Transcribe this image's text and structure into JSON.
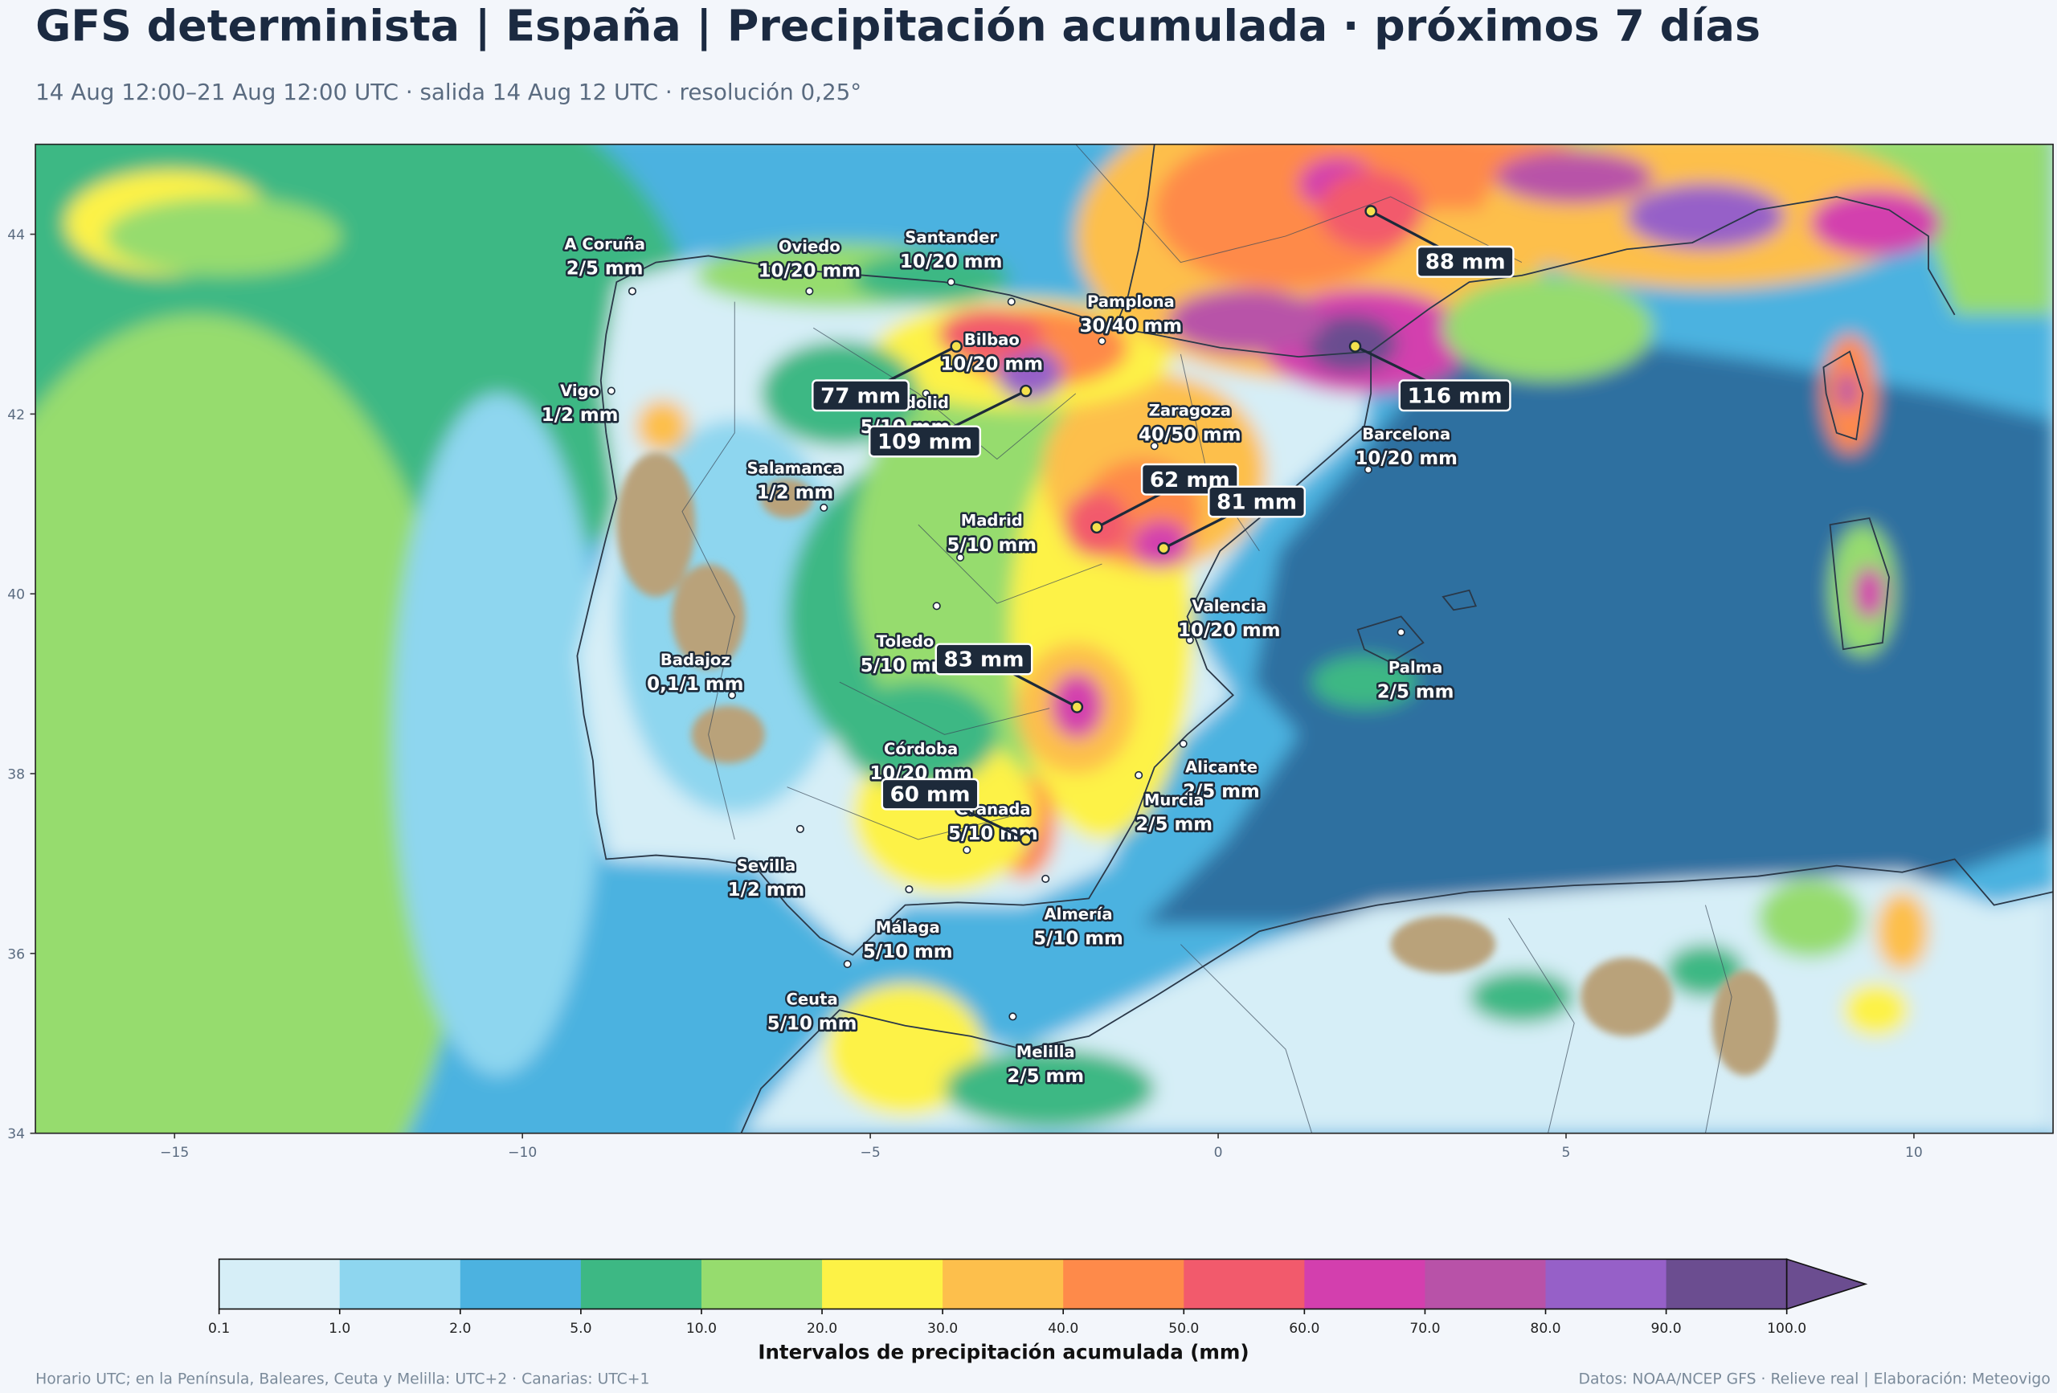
{
  "header": {
    "title": "GFS determinista | España | Precipitación acumulada · próximos 7 días",
    "subtitle": "14 Aug 12:00–21 Aug 12:00 UTC · salida 14 Aug 12 UTC · resolución 0,25°"
  },
  "map": {
    "xlim": [
      -17,
      12
    ],
    "ylim": [
      34,
      45
    ],
    "xticks": [
      {
        "value": -15,
        "label": "−15"
      },
      {
        "value": -10,
        "label": "−10"
      },
      {
        "value": -5,
        "label": "−5"
      },
      0,
      5,
      10
    ],
    "yticks": [
      34,
      36,
      38,
      40,
      42,
      44
    ],
    "cities": [
      {
        "name": "A Coruña",
        "label": "2/5 mm"
      },
      {
        "name": "Oviedo",
        "label": "10/20 mm"
      },
      {
        "name": "Santander",
        "label": "10/20 mm"
      },
      {
        "name": "Bilbao",
        "label": "10/20 mm"
      },
      {
        "name": "Pamplona",
        "label": "30/40 mm"
      },
      {
        "name": "Vigo",
        "label": "1/2 mm"
      },
      {
        "name": "Valladolid",
        "label": "5/10 mm"
      },
      {
        "name": "Zaragoza",
        "label": "40/50 mm"
      },
      {
        "name": "Barcelona",
        "label": "10/20 mm"
      },
      {
        "name": "Salamanca",
        "label": "1/2 mm"
      },
      {
        "name": "Madrid",
        "label": "5/10 mm"
      },
      {
        "name": "Valencia",
        "label": "10/20 mm"
      },
      {
        "name": "Toledo",
        "label": "5/10 mm"
      },
      {
        "name": "Badajoz",
        "label": "0,1/1 mm"
      },
      {
        "name": "Palma",
        "label": "2/5 mm"
      },
      {
        "name": "Córdoba",
        "label": "10/20 mm"
      },
      {
        "name": "Alicante",
        "label": "2/5 mm"
      },
      {
        "name": "Murcia",
        "label": "2/5 mm"
      },
      {
        "name": "Granada",
        "label": "5/10 mm"
      },
      {
        "name": "Sevilla",
        "label": "1/2 mm"
      },
      {
        "name": "Almería",
        "label": "5/10 mm"
      },
      {
        "name": "Málaga",
        "label": "5/10 mm"
      },
      {
        "name": "Ceuta",
        "label": "5/10 mm"
      },
      {
        "name": "Melilla",
        "label": "2/5 mm"
      }
    ],
    "maxima": [
      {
        "label": "88 mm"
      },
      {
        "label": "116 mm"
      },
      {
        "label": "77 mm"
      },
      {
        "label": "109 mm"
      },
      {
        "label": "62 mm"
      },
      {
        "label": "81 mm"
      },
      {
        "label": "83 mm"
      },
      {
        "label": "60 mm"
      }
    ]
  },
  "colorbar": {
    "title": "Intervalos de precipitación acumulada (mm)",
    "bounds": [
      0.1,
      {
        "value": 1,
        "label": "1.0"
      },
      {
        "value": 2,
        "label": "2.0"
      },
      {
        "value": 5,
        "label": "5.0"
      },
      {
        "value": 10,
        "label": "10.0"
      },
      {
        "value": 20,
        "label": "20.0"
      },
      {
        "value": 30,
        "label": "30.0"
      },
      {
        "value": 40,
        "label": "40.0"
      },
      {
        "value": 50,
        "label": "50.0"
      },
      {
        "value": 60,
        "label": "60.0"
      },
      {
        "value": 70,
        "label": "70.0"
      },
      {
        "value": 80,
        "label": "80.0"
      },
      {
        "value": 90,
        "label": "90.0"
      },
      {
        "value": 100,
        "label": "100.0"
      }
    ],
    "colors": [
      "#d6eef7",
      "#8ed6ef",
      "#4cb2e0",
      "#3db884",
      "#96dc6e",
      "#fdf246",
      "#fdbf4c",
      "#fe8a4a",
      "#f25a6c",
      "#d33fae",
      "#b852a8",
      "#9660c8",
      "#6b4d90"
    ]
  },
  "footer": {
    "left": "Horario UTC; en la Península, Baleares, Ceuta y Melilla: UTC+2 · Canarias: UTC+1",
    "right": "Datos: NOAA/NCEP GFS · Relieve real | Elaboración: Meteovigo"
  }
}
